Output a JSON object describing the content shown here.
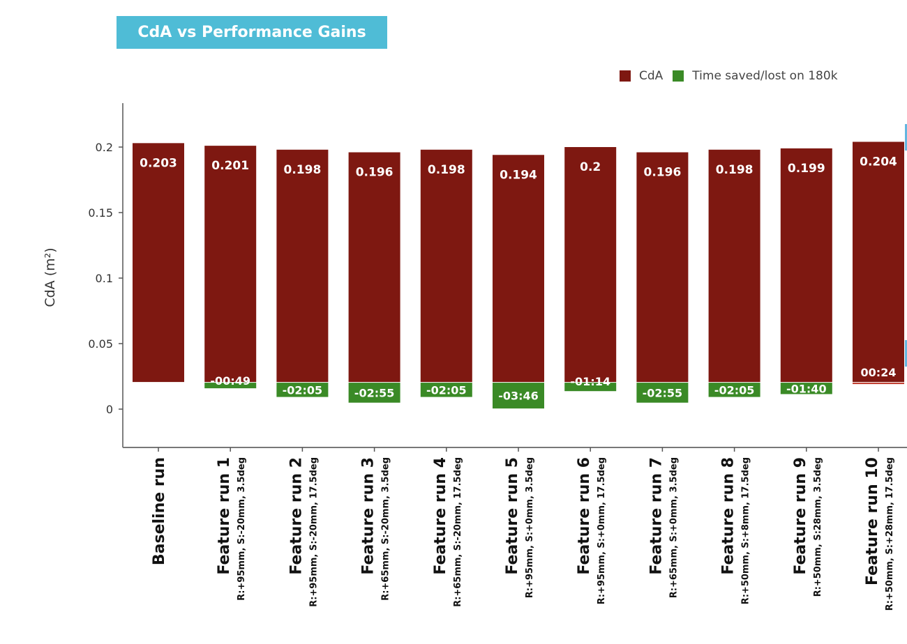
{
  "chart_data": {
    "type": "bar",
    "title": "CdA vs Performance Gains",
    "xlabel": "",
    "ylabel": "CdA (m²)",
    "ylim": [
      -0.03,
      0.23
    ],
    "yticks": [
      0,
      0.05,
      0.1,
      0.15,
      0.2
    ],
    "ytick_labels": [
      "0",
      "0.05",
      "0.1",
      "0.15",
      "0.2"
    ],
    "grid": false,
    "legend_position": "top-right",
    "bar_base": 0.0207,
    "categories": [
      {
        "name": "Baseline run",
        "sub": ""
      },
      {
        "name": "Feature run 1",
        "sub": "R:+95mm, S:-20mm, 3.5deg"
      },
      {
        "name": "Feature run 2",
        "sub": "R:+95mm, S:-20mm, 17.5deg"
      },
      {
        "name": "Feature run 3",
        "sub": "R:+65mm, S:-20mm, 3.5deg"
      },
      {
        "name": "Feature run 4",
        "sub": "R:+65mm, S:-20mm, 17.5deg"
      },
      {
        "name": "Feature run 5",
        "sub": "R:+95mm, S:+0mm, 3.5deg"
      },
      {
        "name": "Feature run 6",
        "sub": "R:+95mm, S:+0mm, 17.5deg"
      },
      {
        "name": "Feature run 7",
        "sub": "R:+65mm, S:+0mm, 3.5deg"
      },
      {
        "name": "Feature run 8",
        "sub": "R:+50mm, S:+8mm, 17.5deg"
      },
      {
        "name": "Feature run 9",
        "sub": "R:+50mm, S:28mm, 3.5deg"
      },
      {
        "name": "Feature run 10",
        "sub": "R:+50mm, S:+28mm, 17.5deg"
      }
    ],
    "series": [
      {
        "name": "CdA",
        "color": "#7e1811",
        "values": [
          0.203,
          0.201,
          0.198,
          0.196,
          0.198,
          0.194,
          0.2,
          0.196,
          0.198,
          0.199,
          0.204
        ],
        "labels": [
          "0.203",
          "0.201",
          "0.198",
          "0.196",
          "0.198",
          "0.194",
          "0.2",
          "0.196",
          "0.198",
          "0.199",
          "0.204"
        ]
      },
      {
        "name": "Time saved/lost on 180k",
        "color": "#3a8a26",
        "values_seconds": [
          null,
          -49,
          -125,
          -175,
          -125,
          -226,
          -74,
          -175,
          -125,
          -100,
          24
        ],
        "labels": [
          "",
          "-00:49",
          "-02:05",
          "-02:55",
          "-02:05",
          "-03:46",
          "-01:14",
          "-02:55",
          "-02:05",
          "-01:40",
          "00:24"
        ]
      }
    ]
  },
  "legend": {
    "items": [
      {
        "label": "CdA",
        "color": "#7e1811"
      },
      {
        "label": "Time saved/lost on 180k",
        "color": "#3a8a26"
      }
    ]
  }
}
